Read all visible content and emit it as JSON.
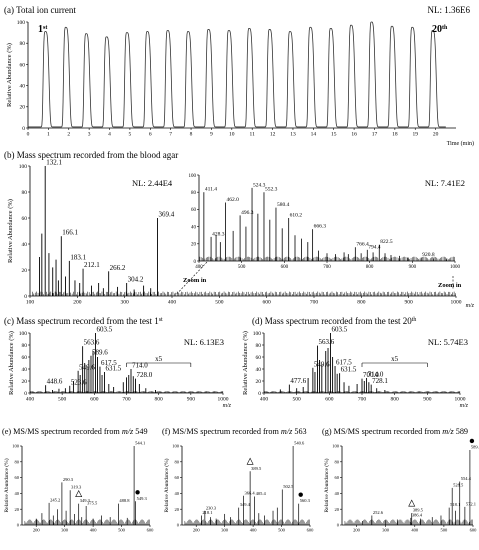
{
  "chart_data": [
    {
      "id": "a",
      "type": "line",
      "title": "(a) Total ion current",
      "nl": "NL: 1.36E6",
      "first_label": "1",
      "first_sup": "st",
      "last_label": "20",
      "last_sup": "th",
      "ylabel": "Relative Abundance (%)",
      "xlabel": "Time (min)",
      "xlim": [
        0,
        21
      ],
      "ylim": [
        0,
        100
      ],
      "xticks": [
        "0",
        "1",
        "2",
        "3",
        "4",
        "5",
        "6",
        "7",
        "8",
        "9",
        "10",
        "11",
        "12",
        "13",
        "14",
        "15",
        "16",
        "17",
        "18",
        "19",
        "20"
      ],
      "yticks": [
        "0",
        "20",
        "40",
        "60",
        "80",
        "100"
      ],
      "peaks": {
        "centers": [
          0.85,
          1.85,
          2.85,
          3.85,
          4.85,
          5.85,
          6.85,
          7.85,
          8.85,
          9.85,
          10.85,
          11.85,
          12.85,
          13.85,
          14.85,
          15.85,
          16.85,
          17.85,
          18.85,
          19.85
        ],
        "heights": [
          90,
          94,
          88,
          85,
          89,
          90,
          91,
          90,
          92,
          91,
          93,
          92,
          90,
          94,
          93,
          96,
          99,
          95,
          94,
          91
        ]
      }
    },
    {
      "id": "b",
      "type": "bar",
      "title": "(b) Mass spectrum recorded from the blood agar",
      "nl": "NL: 2.44E4",
      "ylabel": "Relative Abundance (%)",
      "xlabel": "m/z",
      "xlim": [
        100,
        1000
      ],
      "ylim": [
        0,
        100
      ],
      "xticks": [
        "100",
        "200",
        "300",
        "400",
        "500",
        "600",
        "700",
        "800",
        "900",
        "1000"
      ],
      "yticks": [
        "0",
        "20",
        "40",
        "60",
        "80",
        "100"
      ],
      "zoom_label": "Zoom in",
      "peaks": [
        {
          "x": 132.1,
          "y": 100,
          "label": "132.1"
        },
        {
          "x": 166.1,
          "y": 46,
          "label": "166.1"
        },
        {
          "x": 183.1,
          "y": 27,
          "label": "183.1"
        },
        {
          "x": 212.1,
          "y": 21,
          "label": "212.1"
        },
        {
          "x": 266.2,
          "y": 19,
          "label": "266.2"
        },
        {
          "x": 304.2,
          "y": 10,
          "label": "304.2"
        },
        {
          "x": 369.4,
          "y": 60,
          "label": "369.4"
        },
        {
          "x": 120,
          "y": 30
        },
        {
          "x": 125,
          "y": 48
        },
        {
          "x": 140,
          "y": 33
        },
        {
          "x": 148,
          "y": 22
        },
        {
          "x": 155,
          "y": 28
        },
        {
          "x": 160,
          "y": 12
        },
        {
          "x": 175,
          "y": 15
        },
        {
          "x": 195,
          "y": 12
        },
        {
          "x": 205,
          "y": 10
        },
        {
          "x": 230,
          "y": 8
        },
        {
          "x": 245,
          "y": 10
        },
        {
          "x": 255,
          "y": 6
        },
        {
          "x": 285,
          "y": 7
        },
        {
          "x": 320,
          "y": 5
        },
        {
          "x": 340,
          "y": 8
        },
        {
          "x": 355,
          "y": 6
        }
      ],
      "inset": {
        "nl": "NL: 7.41E2",
        "xlim": [
          400,
          1000
        ],
        "ylim": [
          0,
          100
        ],
        "xticks": [
          "400",
          "500",
          "600",
          "700",
          "800",
          "900",
          "1000"
        ],
        "yticks": [
          "0",
          "20",
          "40",
          "60",
          "80",
          "100"
        ],
        "peaks": [
          {
            "x": 411.4,
            "y": 80,
            "label": "411.4"
          },
          {
            "x": 428.3,
            "y": 28,
            "label": "428.3"
          },
          {
            "x": 462.0,
            "y": 68,
            "label": "462.0"
          },
          {
            "x": 496.3,
            "y": 53,
            "label": "496.3"
          },
          {
            "x": 524.3,
            "y": 85,
            "label": "524.3"
          },
          {
            "x": 552.3,
            "y": 80,
            "label": "552.3"
          },
          {
            "x": 580.4,
            "y": 62,
            "label": "580.4"
          },
          {
            "x": 610.2,
            "y": 50,
            "label": "610.2"
          },
          {
            "x": 666.3,
            "y": 37,
            "label": "666.3"
          },
          {
            "x": 766.4,
            "y": 16,
            "label": "766.4"
          },
          {
            "x": 794.4,
            "y": 13,
            "label": "794.4"
          },
          {
            "x": 822.5,
            "y": 19,
            "label": "822.5"
          },
          {
            "x": 920.8,
            "y": 4,
            "label": "920.8"
          },
          {
            "x": 440,
            "y": 30
          },
          {
            "x": 450,
            "y": 22
          },
          {
            "x": 480,
            "y": 35
          },
          {
            "x": 510,
            "y": 40
          },
          {
            "x": 538,
            "y": 55
          },
          {
            "x": 566,
            "y": 48
          },
          {
            "x": 595,
            "y": 38
          },
          {
            "x": 625,
            "y": 30
          },
          {
            "x": 640,
            "y": 26
          },
          {
            "x": 655,
            "y": 22
          },
          {
            "x": 680,
            "y": 12
          },
          {
            "x": 700,
            "y": 9
          },
          {
            "x": 720,
            "y": 8
          },
          {
            "x": 740,
            "y": 10
          },
          {
            "x": 750,
            "y": 8
          },
          {
            "x": 780,
            "y": 9
          },
          {
            "x": 808,
            "y": 10
          },
          {
            "x": 836,
            "y": 9
          },
          {
            "x": 850,
            "y": 7
          },
          {
            "x": 870,
            "y": 6
          },
          {
            "x": 890,
            "y": 4
          },
          {
            "x": 950,
            "y": 3
          },
          {
            "x": 980,
            "y": 2
          }
        ]
      }
    },
    {
      "id": "c",
      "type": "bar",
      "title_pre": "(c) Mass spectrum recorded from the test 1",
      "title_sup": "st",
      "nl": "NL: 6.13E3",
      "ylabel": "Relative Abundance (%)",
      "xlabel": "m/z",
      "xlim": [
        400,
        1000
      ],
      "ylim": [
        0,
        100
      ],
      "xticks": [
        "400",
        "500",
        "600",
        "700",
        "800",
        "900",
        "1000"
      ],
      "yticks": [
        "0",
        "20",
        "40",
        "60",
        "80",
        "100"
      ],
      "magnify_label": "x5",
      "magnify_range": [
        700,
        900
      ],
      "peaks": [
        {
          "x": 448.6,
          "y": 13,
          "label": "448.6"
        },
        {
          "x": 523.6,
          "y": 12,
          "label": "523.6"
        },
        {
          "x": 549.6,
          "y": 37,
          "label": "549.6"
        },
        {
          "x": 563.6,
          "y": 78,
          "label": "563.6"
        },
        {
          "x": 589.6,
          "y": 62,
          "label": "589.6"
        },
        {
          "x": 603.5,
          "y": 100,
          "label": "603.5"
        },
        {
          "x": 617.5,
          "y": 44,
          "label": "617.5"
        },
        {
          "x": 631.5,
          "y": 35,
          "label": "631.5"
        },
        {
          "x": 714.0,
          "y": 40,
          "label": "714.0"
        },
        {
          "x": 728.0,
          "y": 24,
          "label": "728.0"
        },
        {
          "x": 470,
          "y": 5
        },
        {
          "x": 490,
          "y": 7
        },
        {
          "x": 510,
          "y": 8
        },
        {
          "x": 535,
          "y": 20
        },
        {
          "x": 556,
          "y": 30
        },
        {
          "x": 570,
          "y": 50
        },
        {
          "x": 577,
          "y": 45
        },
        {
          "x": 583,
          "y": 55
        },
        {
          "x": 596,
          "y": 70
        },
        {
          "x": 610,
          "y": 60
        },
        {
          "x": 624,
          "y": 30
        },
        {
          "x": 645,
          "y": 15
        },
        {
          "x": 660,
          "y": 10
        },
        {
          "x": 690,
          "y": 18
        },
        {
          "x": 700,
          "y": 26
        },
        {
          "x": 707,
          "y": 30
        },
        {
          "x": 721,
          "y": 28
        },
        {
          "x": 740,
          "y": 15
        },
        {
          "x": 760,
          "y": 8
        },
        {
          "x": 790,
          "y": 5
        }
      ]
    },
    {
      "id": "d",
      "type": "bar",
      "title_pre": "(d) Mass spectrum recorded from the test 20",
      "title_sup": "th",
      "nl": "NL: 5.74E3",
      "ylabel": "Relative Abundance (%)",
      "xlabel": "m/z",
      "xlim": [
        400,
        1000
      ],
      "ylim": [
        0,
        100
      ],
      "xticks": [
        "400",
        "500",
        "600",
        "700",
        "800",
        "900",
        "1000"
      ],
      "yticks": [
        "0",
        "20",
        "40",
        "60",
        "80",
        "100"
      ],
      "magnify_label": "x5",
      "magnify_range": [
        700,
        900
      ],
      "peaks": [
        {
          "x": 477.6,
          "y": 14,
          "label": "477.6"
        },
        {
          "x": 549.6,
          "y": 42,
          "label": "549.6"
        },
        {
          "x": 563.6,
          "y": 79,
          "label": "563.6"
        },
        {
          "x": 603.5,
          "y": 100,
          "label": "603.5"
        },
        {
          "x": 617.5,
          "y": 45,
          "label": "617.5"
        },
        {
          "x": 631.5,
          "y": 33,
          "label": "631.5"
        },
        {
          "x": 700.0,
          "y": 24,
          "label": "700.0"
        },
        {
          "x": 714.0,
          "y": 25,
          "label": "714.0"
        },
        {
          "x": 728.1,
          "y": 14,
          "label": "728.1"
        },
        {
          "x": 450,
          "y": 6
        },
        {
          "x": 500,
          "y": 8
        },
        {
          "x": 520,
          "y": 10
        },
        {
          "x": 535,
          "y": 25
        },
        {
          "x": 556,
          "y": 35
        },
        {
          "x": 570,
          "y": 55
        },
        {
          "x": 577,
          "y": 48
        },
        {
          "x": 589,
          "y": 70
        },
        {
          "x": 596,
          "y": 75
        },
        {
          "x": 610,
          "y": 60
        },
        {
          "x": 624,
          "y": 32
        },
        {
          "x": 645,
          "y": 18
        },
        {
          "x": 660,
          "y": 12
        },
        {
          "x": 685,
          "y": 15
        },
        {
          "x": 707,
          "y": 20
        },
        {
          "x": 721,
          "y": 18
        },
        {
          "x": 745,
          "y": 8
        },
        {
          "x": 770,
          "y": 5
        }
      ]
    },
    {
      "id": "e",
      "type": "bar",
      "title_pre": "(e) MS/MS spectrum recorded from ",
      "title_mz": "m/z",
      "title_post": " 549",
      "ylabel": "Relative Abundance (%)",
      "xlim": [
        150,
        600
      ],
      "ylim": [
        0,
        100
      ],
      "xticks": [
        "200",
        "300",
        "400",
        "500",
        "600"
      ],
      "yticks": [
        "0",
        "20",
        "40",
        "60",
        "80",
        "100"
      ],
      "peaks": [
        {
          "x": 245.2,
          "y": 28,
          "label": "245.2"
        },
        {
          "x": 290.3,
          "y": 54,
          "label": "290.3"
        },
        {
          "x": 319.3,
          "y": 44,
          "label": "319.3"
        },
        {
          "x": 349.3,
          "y": 27,
          "label": "349.3"
        },
        {
          "x": 375.5,
          "y": 24,
          "label": "375.5"
        },
        {
          "x": 488.8,
          "y": 27,
          "label": "488.8"
        },
        {
          "x": 544.1,
          "y": 100,
          "label": "544.1"
        },
        {
          "x": 549.3,
          "y": 30,
          "label": "549.3"
        },
        {
          "x": 200,
          "y": 8
        },
        {
          "x": 220,
          "y": 15
        },
        {
          "x": 260,
          "y": 12
        },
        {
          "x": 275,
          "y": 20
        },
        {
          "x": 305,
          "y": 18
        },
        {
          "x": 335,
          "y": 14
        },
        {
          "x": 360,
          "y": 10
        },
        {
          "x": 400,
          "y": 8
        },
        {
          "x": 430,
          "y": 12
        },
        {
          "x": 460,
          "y": 10
        },
        {
          "x": 520,
          "y": 9
        }
      ],
      "triangle_x": 349.3,
      "dot_x": 549.3
    },
    {
      "id": "f",
      "type": "bar",
      "title_pre": "(f) MS/MS spectrum recorded from ",
      "title_mz": "m/z",
      "title_post": " 563",
      "ylabel": "Relative Abundance (%)",
      "xlim": [
        150,
        600
      ],
      "ylim": [
        0,
        100
      ],
      "xticks": [
        "200",
        "300",
        "400",
        "500",
        "600"
      ],
      "yticks": [
        "0",
        "20",
        "40",
        "60",
        "80",
        "100"
      ],
      "peaks": [
        {
          "x": 218.1,
          "y": 12,
          "label": "218.1"
        },
        {
          "x": 230.3,
          "y": 18,
          "label": "230.3"
        },
        {
          "x": 349.4,
          "y": 22,
          "label": "349.4"
        },
        {
          "x": 366.4,
          "y": 37,
          "label": "366.4"
        },
        {
          "x": 389.5,
          "y": 68,
          "label": "389.5"
        },
        {
          "x": 405.4,
          "y": 36,
          "label": "405.4"
        },
        {
          "x": 502.5,
          "y": 45,
          "label": "502.5"
        },
        {
          "x": 540.6,
          "y": 100,
          "label": "540.6"
        },
        {
          "x": 560.3,
          "y": 27,
          "label": "560.3"
        },
        {
          "x": 250,
          "y": 10
        },
        {
          "x": 270,
          "y": 8
        },
        {
          "x": 300,
          "y": 14
        },
        {
          "x": 320,
          "y": 10
        },
        {
          "x": 420,
          "y": 15
        },
        {
          "x": 440,
          "y": 12
        },
        {
          "x": 470,
          "y": 18
        },
        {
          "x": 485,
          "y": 22
        }
      ],
      "triangle_x": 389.5,
      "dot_x": 560.3
    },
    {
      "id": "g",
      "type": "bar",
      "title_pre": "(g) MS/MS spectrum recorded from ",
      "title_mz": "m/z",
      "title_post": " 589",
      "ylabel": "Relative Abundance (%)",
      "xlim": [
        150,
        600
      ],
      "ylim": [
        0,
        100
      ],
      "xticks": [
        "200",
        "300",
        "400",
        "500",
        "600"
      ],
      "yticks": [
        "0",
        "20",
        "40",
        "60",
        "80",
        "100"
      ],
      "peaks": [
        {
          "x": 252.6,
          "y": 12,
          "label": "252.6"
        },
        {
          "x": 386.4,
          "y": 9,
          "label": "386.4"
        },
        {
          "x": 389.5,
          "y": 15,
          "label": "389.5"
        },
        {
          "x": 518.1,
          "y": 22,
          "label": "518.1"
        },
        {
          "x": 528.5,
          "y": 47,
          "label": "528.5"
        },
        {
          "x": 554.4,
          "y": 55,
          "label": "554.4"
        },
        {
          "x": 572.1,
          "y": 23,
          "label": "572.1"
        },
        {
          "x": 589.4,
          "y": 95,
          "label": "589.4"
        },
        {
          "x": 220,
          "y": 5
        },
        {
          "x": 300,
          "y": 6
        },
        {
          "x": 340,
          "y": 7
        },
        {
          "x": 420,
          "y": 8
        },
        {
          "x": 460,
          "y": 10
        },
        {
          "x": 490,
          "y": 12
        },
        {
          "x": 540,
          "y": 18
        }
      ],
      "triangle_x": 389.5,
      "dot_x": 589.4
    }
  ]
}
